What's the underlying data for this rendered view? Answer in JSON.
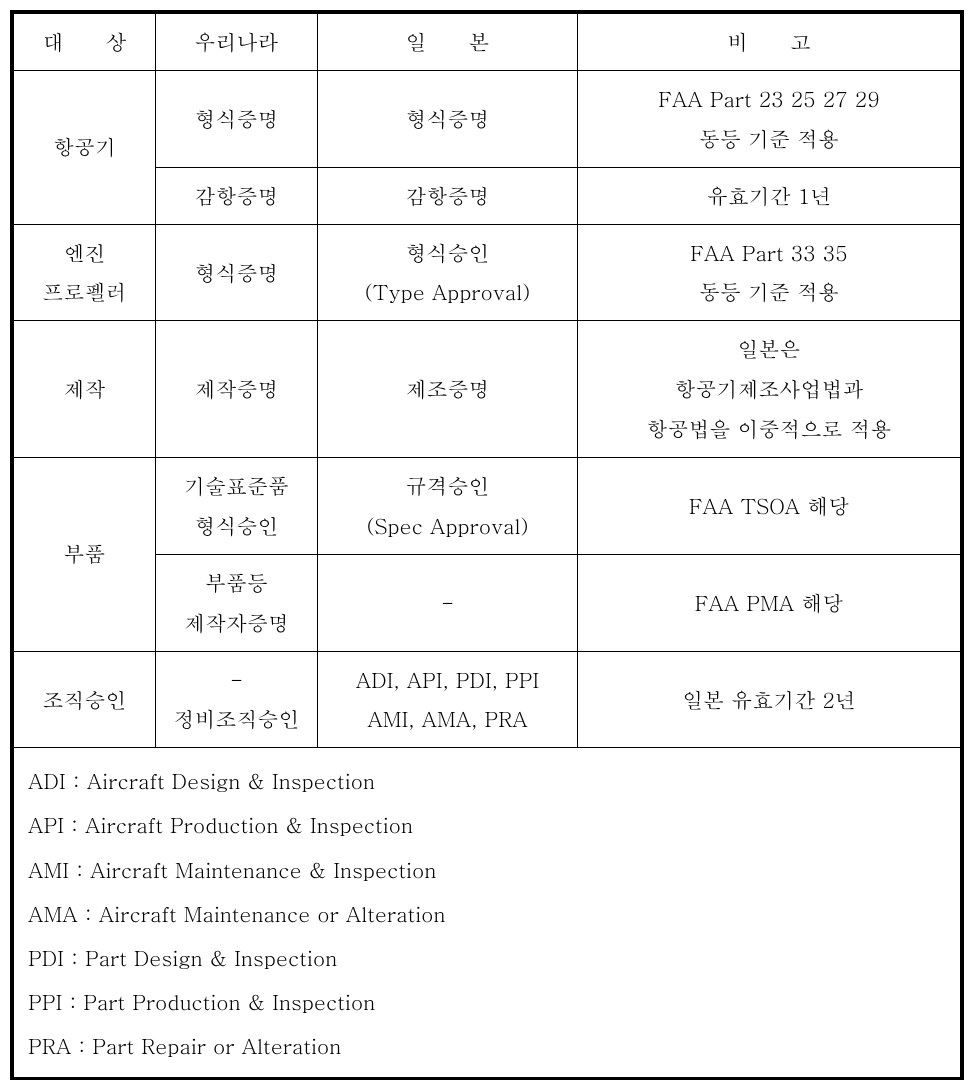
{
  "table": {
    "header": {
      "col1": "대　　상",
      "col2": "우리나라",
      "col3": "일　　본",
      "col4": "비　　고"
    },
    "rows": {
      "aircraft": {
        "label": "항공기",
        "row1": {
          "korea": "형식증명",
          "japan": "형식증명",
          "note_line1": "FAA Part 23 25 27 29",
          "note_line2": "동등 기준 적용"
        },
        "row2": {
          "korea": "감항증명",
          "japan": "감항증명",
          "note": "유효기간 1년"
        }
      },
      "engine": {
        "label_line1": "엔진",
        "label_line2": "프로펠러",
        "korea": "형식증명",
        "japan_line1": "형식승인",
        "japan_line2": "(Type Approval)",
        "note_line1": "FAA Part 33 35",
        "note_line2": "동등 기준 적용"
      },
      "production": {
        "label": "제작",
        "korea": "제작증명",
        "japan": "제조증명",
        "note_line1": "일본은",
        "note_line2": "항공기제조사업법과",
        "note_line3": "항공법을 이중적으로 적용"
      },
      "parts": {
        "label": "부품",
        "row1": {
          "korea_line1": "기술표준품",
          "korea_line2": "형식승인",
          "japan_line1": "규격승인",
          "japan_line2": "(Spec Approval)",
          "note": "FAA TSOA 해당"
        },
        "row2": {
          "korea_line1": "부품등",
          "korea_line2": "제작자증명",
          "japan": "-",
          "note": "FAA PMA 해당"
        }
      },
      "org": {
        "label": "조직승인",
        "korea_line1": "-",
        "korea_line2": "정비조직승인",
        "japan_line1": "ADI, API, PDI, PPI",
        "japan_line2": "AMI, AMA, PRA",
        "note": "일본 유효기간 2년"
      }
    }
  },
  "definitions": {
    "adi": "ADI : Aircraft Design & Inspection",
    "api": "API : Aircraft Production & Inspection",
    "ami": "AMI : Aircraft Maintenance & Inspection",
    "ama": "AMA : Aircraft Maintenance or Alteration",
    "pdi": "PDI : Part Design & Inspection",
    "ppi": "PPI : Part Production & Inspection",
    "pra": "PRA : Part Repair or Alteration"
  },
  "style": {
    "border_color": "#000000",
    "background_color": "#ffffff",
    "text_color": "#000000",
    "font_size": 21,
    "outer_border_width": 3,
    "inner_border_width": 1
  }
}
